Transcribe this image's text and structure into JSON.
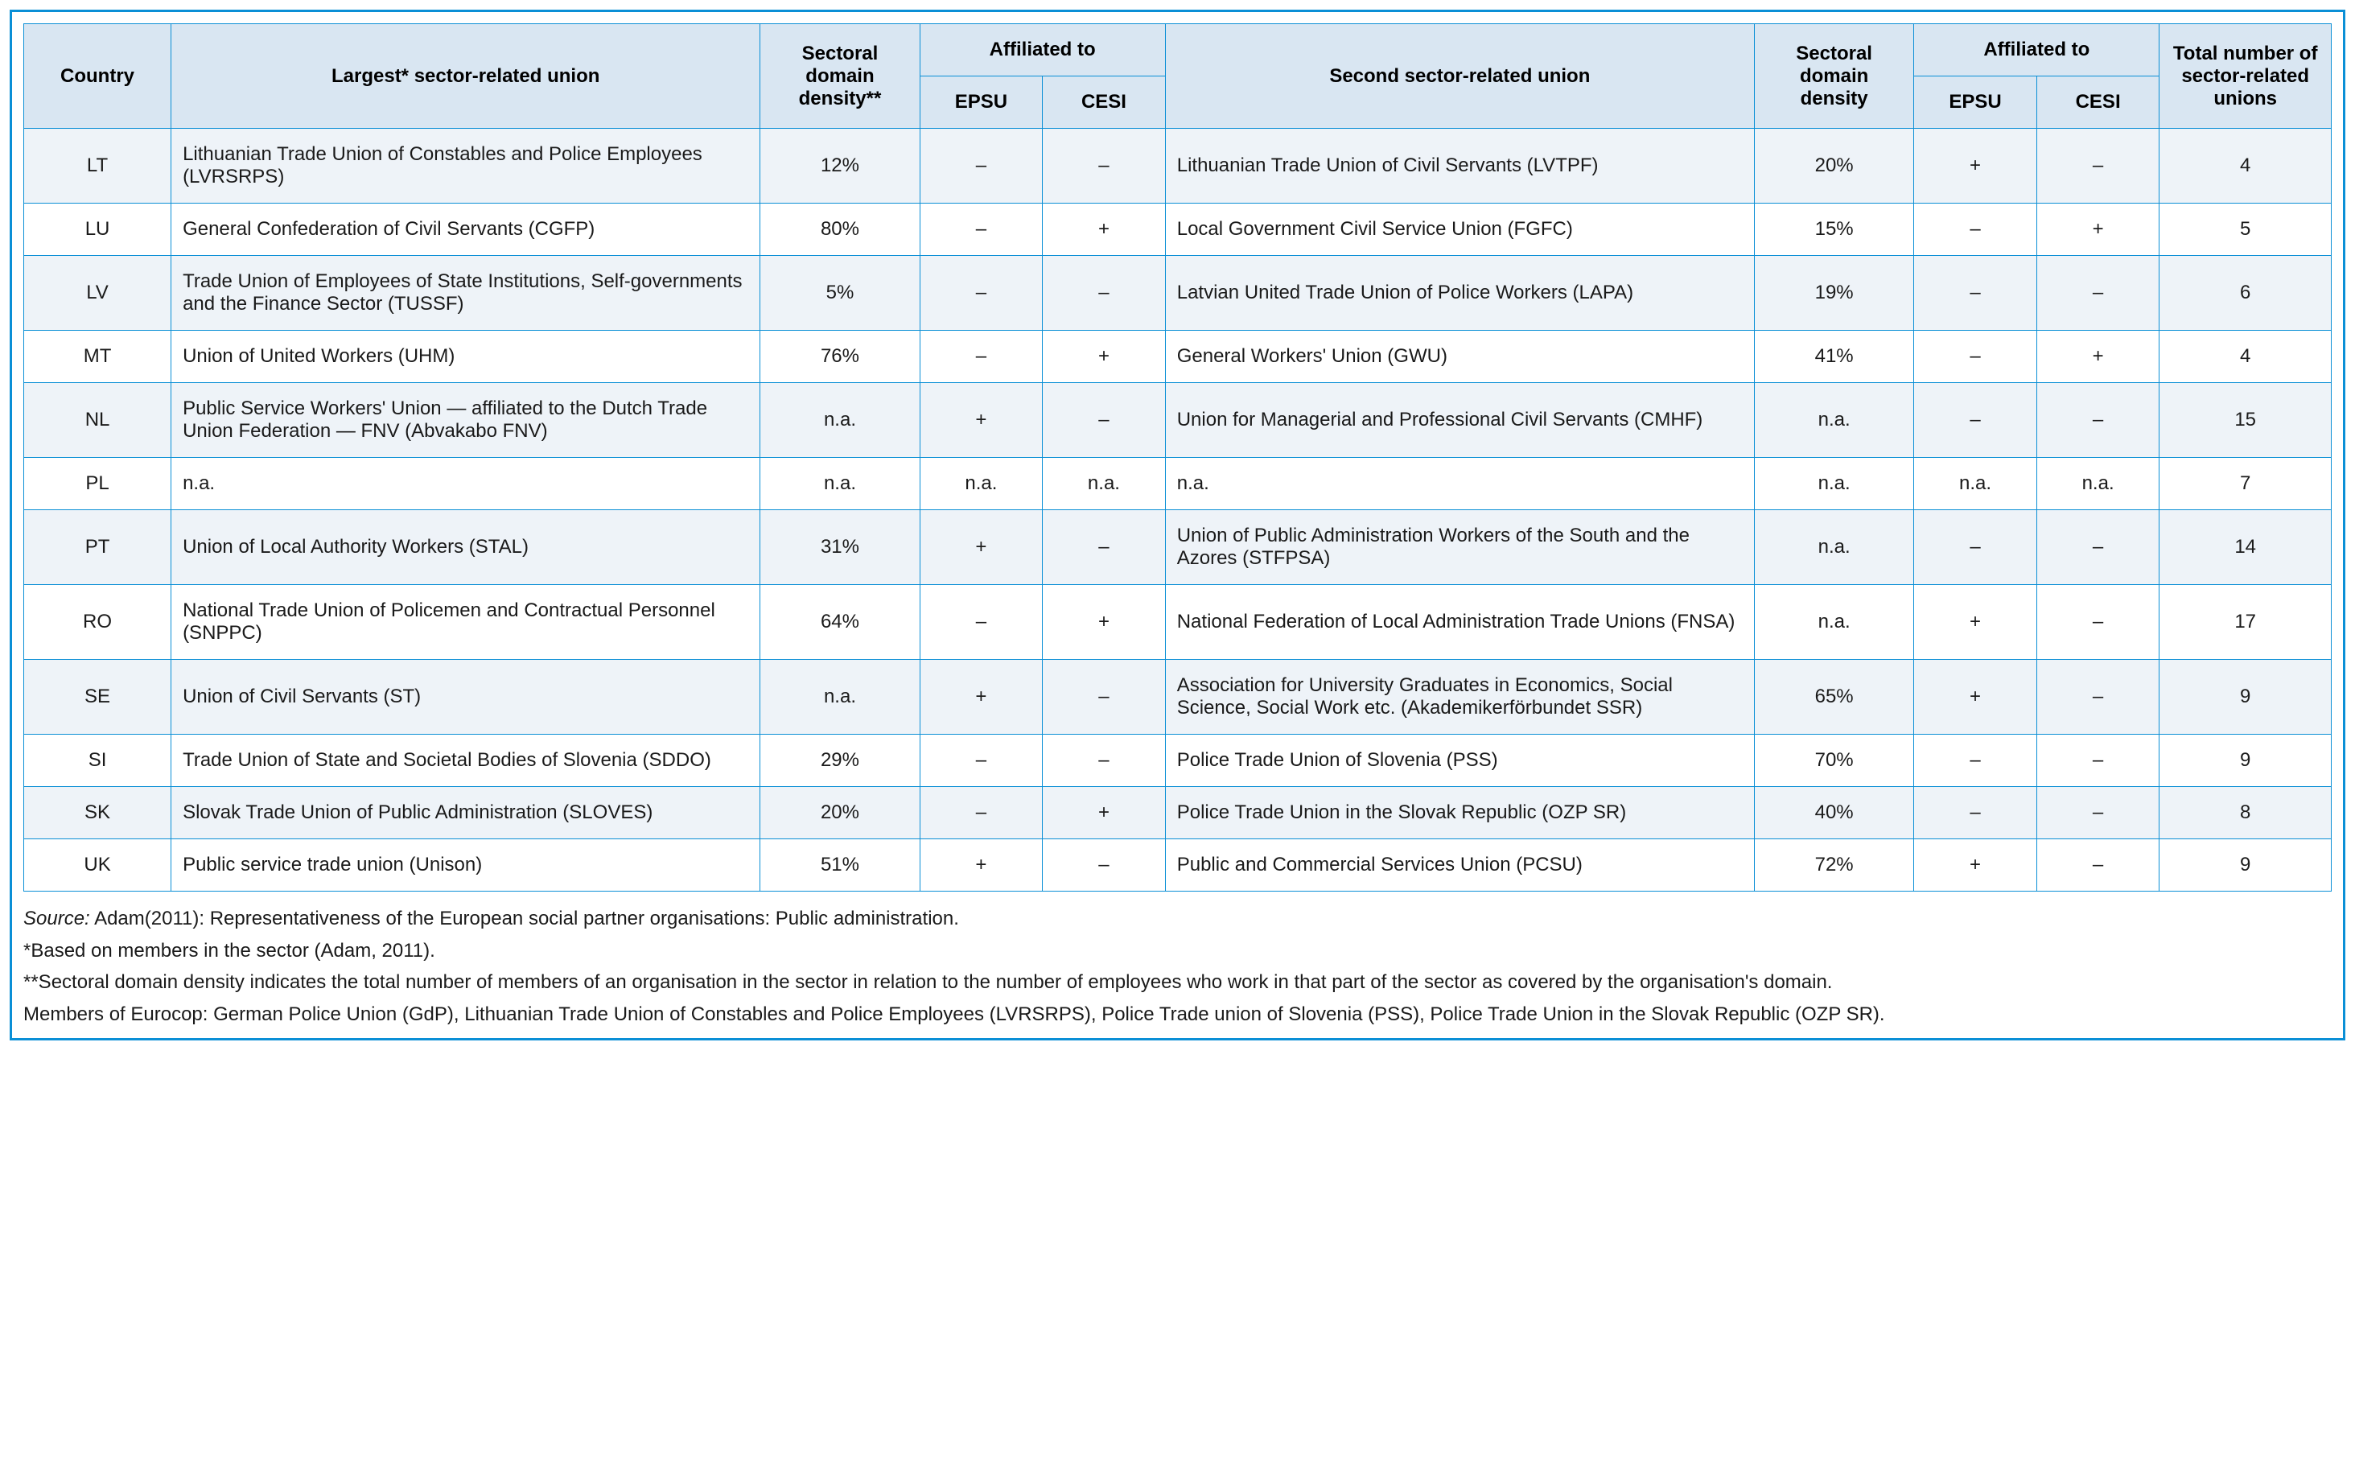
{
  "headers": {
    "country": "Country",
    "union1": "Largest* sector-related union",
    "density1": "Sectoral domain density**",
    "affiliated": "Affiliated to",
    "epsu": "EPSU",
    "cesi": "CESI",
    "union2": "Second sector-related union",
    "density2": "Sectoral domain density",
    "total": "Total number of sector-related unions"
  },
  "rows": [
    {
      "country": "LT",
      "union1": "Lithuanian Trade Union of Constables and Police Employees (LVRSRPS)",
      "density1": "12%",
      "epsu1": "–",
      "cesi1": "–",
      "union2": "Lithuanian Trade Union of Civil Servants (LVTPF)",
      "density2": "20%",
      "epsu2": "+",
      "cesi2": "–",
      "total": "4"
    },
    {
      "country": "LU",
      "union1": "General Confederation of Civil Servants (CGFP)",
      "density1": "80%",
      "epsu1": "–",
      "cesi1": "+",
      "union2": "Local Government Civil Service Union (FGFC)",
      "density2": "15%",
      "epsu2": "–",
      "cesi2": "+",
      "total": "5"
    },
    {
      "country": "LV",
      "union1": "Trade Union of Employees of State Institutions, Self-governments and the Finance Sector (TUSSF)",
      "density1": "5%",
      "epsu1": "–",
      "cesi1": "–",
      "union2": "Latvian United Trade Union of Police Workers (LAPA)",
      "density2": "19%",
      "epsu2": "–",
      "cesi2": "–",
      "total": "6"
    },
    {
      "country": "MT",
      "union1": "Union of United Workers (UHM)",
      "density1": "76%",
      "epsu1": "–",
      "cesi1": "+",
      "union2": "General Workers' Union (GWU)",
      "density2": "41%",
      "epsu2": "–",
      "cesi2": "+",
      "total": "4"
    },
    {
      "country": "NL",
      "union1": "Public Service Workers' Union — affiliated to the Dutch Trade Union Federation — FNV (Abvakabo FNV)",
      "density1": "n.a.",
      "epsu1": "+",
      "cesi1": "–",
      "union2": "Union for Managerial and Professional Civil Servants (CMHF)",
      "density2": "n.a.",
      "epsu2": "–",
      "cesi2": "–",
      "total": "15"
    },
    {
      "country": "PL",
      "union1": "n.a.",
      "density1": "n.a.",
      "epsu1": "n.a.",
      "cesi1": "n.a.",
      "union2": "n.a.",
      "density2": "n.a.",
      "epsu2": "n.a.",
      "cesi2": "n.a.",
      "total": "7"
    },
    {
      "country": "PT",
      "union1": "Union of Local Authority Workers (STAL)",
      "density1": "31%",
      "epsu1": "+",
      "cesi1": "–",
      "union2": "Union of Public Administration Workers of the South and the Azores (STFPSA)",
      "density2": "n.a.",
      "epsu2": "–",
      "cesi2": "–",
      "total": "14"
    },
    {
      "country": "RO",
      "union1": "National Trade Union of Policemen and Contractual Personnel (SNPPC)",
      "density1": "64%",
      "epsu1": "–",
      "cesi1": "+",
      "union2": "National Federation of Local Administration Trade Unions (FNSA)",
      "density2": "n.a.",
      "epsu2": "+",
      "cesi2": "–",
      "total": "17"
    },
    {
      "country": "SE",
      "union1": "Union of Civil Servants (ST)",
      "density1": "n.a.",
      "epsu1": "+",
      "cesi1": "–",
      "union2": "Association for University Graduates in Economics, Social Science, Social Work etc. (Akademikerförbundet SSR)",
      "density2": "65%",
      "epsu2": "+",
      "cesi2": "–",
      "total": "9"
    },
    {
      "country": "SI",
      "union1": "Trade Union of State and Societal Bodies of Slovenia (SDDO)",
      "density1": "29%",
      "epsu1": "–",
      "cesi1": "–",
      "union2": "Police Trade Union of Slovenia (PSS)",
      "density2": "70%",
      "epsu2": "–",
      "cesi2": "–",
      "total": "9"
    },
    {
      "country": "SK",
      "union1": "Slovak Trade Union of Public Administration (SLOVES)",
      "density1": "20%",
      "epsu1": "–",
      "cesi1": "+",
      "union2": "Police Trade Union in the Slovak Republic (OZP SR)",
      "density2": "40%",
      "epsu2": "–",
      "cesi2": "–",
      "total": "8"
    },
    {
      "country": "UK",
      "union1": "Public service trade union (Unison)",
      "density1": "51%",
      "epsu1": "+",
      "cesi1": "–",
      "union2": "Public and Commercial Services Union (PCSU)",
      "density2": "72%",
      "epsu2": "+",
      "cesi2": "–",
      "total": "9"
    }
  ],
  "notes": {
    "source_label": "Source:",
    "source_text": " Adam(2011): Representativeness of the European social partner organisations: Public administration.",
    "note1": "*Based on members in the sector (Adam, 2011).",
    "note2": "**Sectoral domain density indicates the total number of members of an organisation in the sector in relation to the number of employees who work in that part of the sector as covered by the organisation's domain.",
    "note3": "Members of Eurocop: German Police Union (GdP), Lithuanian Trade Union of Constables and Police Employees (LVRSRPS), Police Trade union of Slovenia (PSS), Police Trade Union in the Slovak Republic (OZP SR)."
  },
  "style": {
    "border_color": "#0a8fd6",
    "header_bg": "#d9e6f2",
    "row_alt_bg": "#eef3f8",
    "text_color": "#1a1a1a",
    "font_size_pt": 18
  }
}
